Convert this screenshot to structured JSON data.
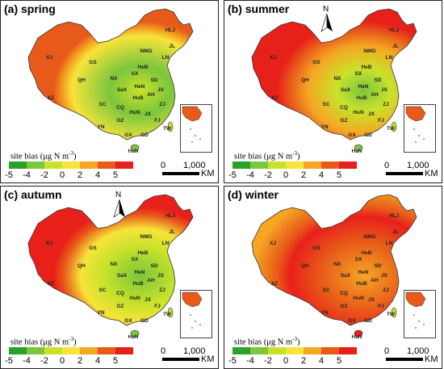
{
  "panels": [
    {
      "title": "(a) spring",
      "north": false,
      "scheme": "spring",
      "show_scale_label": true
    },
    {
      "title": "(b) summer",
      "north": true,
      "scheme": "summer",
      "show_scale_label": true
    },
    {
      "title": "(c) autumn",
      "north": true,
      "scheme": "autumn",
      "show_scale_label": true
    },
    {
      "title": "(d) winter",
      "north": false,
      "scheme": "winter",
      "show_scale_label": true
    }
  ],
  "legend": {
    "title": "site bias (μg N m",
    "title_sup": "-3",
    "title_end": ")",
    "ticks": [
      "-5",
      "-4",
      "-2",
      "0",
      "2",
      "4",
      "5"
    ],
    "colors": [
      "#2aa12a",
      "#7cc63c",
      "#c8e22a",
      "#f7e43a",
      "#f5a623",
      "#e85a1a",
      "#e8201a"
    ]
  },
  "scale": {
    "zero": "0",
    "distance": "1,000",
    "unit": "KM"
  },
  "north_label": "N",
  "province_labels": [
    "HLJ",
    "JL",
    "LN",
    "NMG",
    "XJ",
    "GS",
    "QH",
    "XZ",
    "NX",
    "SX",
    "HeB",
    "SD",
    "HeN",
    "SaX",
    "HuB",
    "AH",
    "JS",
    "SC",
    "CQ",
    "HuN",
    "JX",
    "ZJ",
    "GZ",
    "YN",
    "GX",
    "GD",
    "FJ",
    "TW",
    "HaN"
  ]
}
